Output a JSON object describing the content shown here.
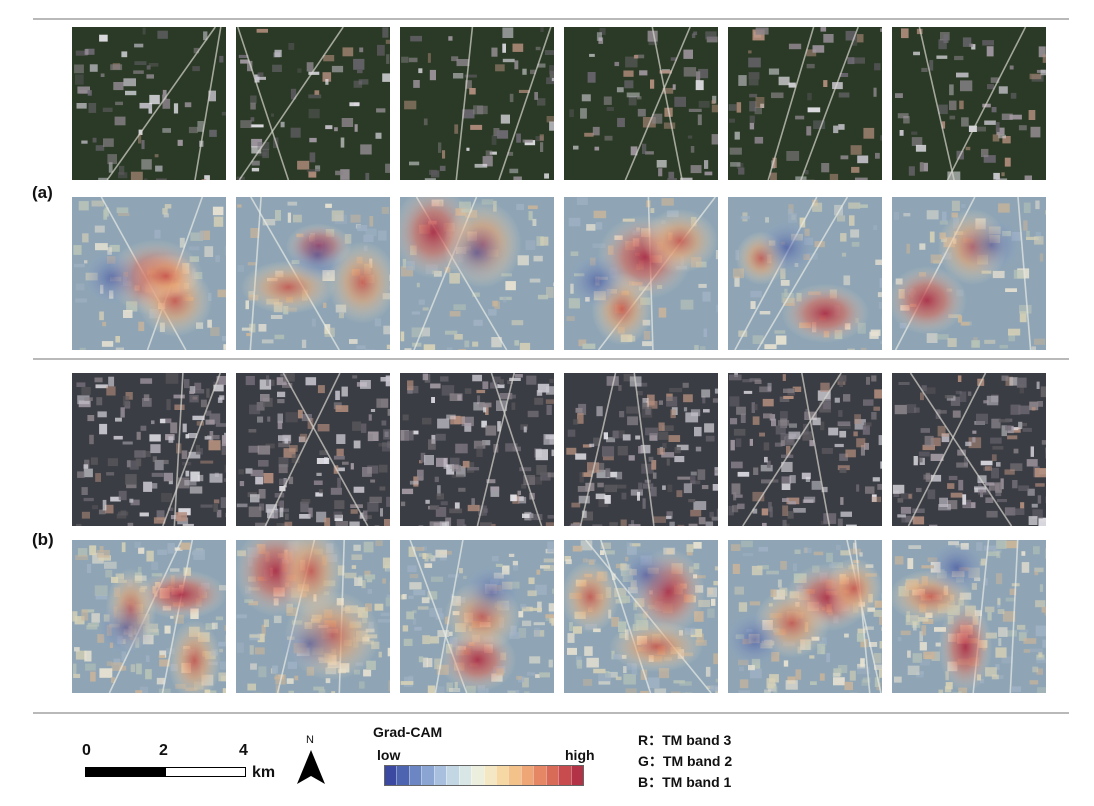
{
  "panels": [
    {
      "label": "(a)",
      "colors": {
        "veg": "#2b3a26",
        "urban": "#8a8389"
      }
    },
    {
      "label": "(b)",
      "colors": {
        "veg": "#3b3d44",
        "urban": "#8e8aa0"
      }
    }
  ],
  "scale_bar": {
    "ticks": [
      "0",
      "2",
      "4"
    ],
    "unit": "km"
  },
  "north_arrow": {
    "label": "N"
  },
  "gradcam_legend": {
    "title": "Grad-CAM",
    "low_label": "low",
    "high_label": "high",
    "colors": [
      "#3b4aa0",
      "#4d64b1",
      "#6b86c2",
      "#8aa5d2",
      "#a8c0de",
      "#c3d6e4",
      "#d9e6e6",
      "#eceede",
      "#f4e8c4",
      "#f6d8a4",
      "#f3c28a",
      "#eea676",
      "#e58664",
      "#d86a58",
      "#c84b4e",
      "#b23346"
    ]
  },
  "band_legend": [
    {
      "label": "R：TM band 3"
    },
    {
      "label": "G：TM band 2"
    },
    {
      "label": "B：TM band 1"
    }
  ]
}
